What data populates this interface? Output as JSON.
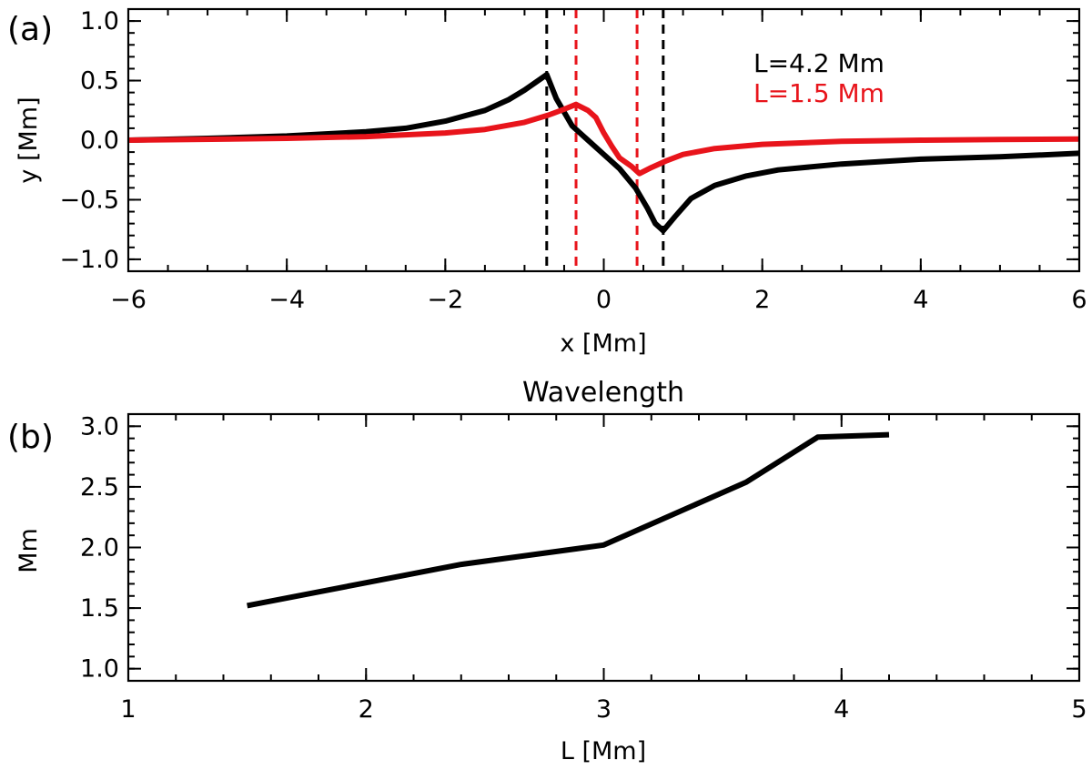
{
  "colors": {
    "black": "#000000",
    "red": "#e8141b",
    "background": "#ffffff"
  },
  "chart_data": [
    {
      "type": "line",
      "panel_label": "(a)",
      "title": "",
      "xlabel": "x [Mm]",
      "ylabel": "y [Mm]",
      "xlim": [
        -6,
        6
      ],
      "ylim": [
        -1.1,
        1.1
      ],
      "xticks": [
        -6,
        -4,
        -2,
        0,
        2,
        4,
        6
      ],
      "xtick_labels": [
        "−6",
        "−4",
        "−2",
        "0",
        "2",
        "4",
        "6"
      ],
      "yticks": [
        1.0,
        0.5,
        0.0,
        -0.5,
        -1.0
      ],
      "ytick_labels": [
        "1.0",
        "0.5",
        "0.0",
        "−0.5",
        "−1.0"
      ],
      "x_minor_step": 0.5,
      "y_minor_step": 0.1,
      "legend_position": "top-right",
      "series": [
        {
          "name": "L=4.2 Mm",
          "color": "#000000",
          "x": [
            -6.0,
            -5.0,
            -4.0,
            -3.0,
            -2.5,
            -2.0,
            -1.5,
            -1.2,
            -1.0,
            -0.85,
            -0.72,
            -0.6,
            -0.4,
            -0.2,
            0.0,
            0.2,
            0.4,
            0.55,
            0.65,
            0.75,
            0.9,
            1.1,
            1.4,
            1.8,
            2.2,
            3.0,
            4.0,
            5.0,
            6.0
          ],
          "y": [
            0.0,
            0.015,
            0.035,
            0.07,
            0.1,
            0.16,
            0.25,
            0.34,
            0.42,
            0.49,
            0.55,
            0.35,
            0.12,
            0.0,
            -0.12,
            -0.24,
            -0.4,
            -0.57,
            -0.7,
            -0.76,
            -0.64,
            -0.49,
            -0.38,
            -0.3,
            -0.25,
            -0.2,
            -0.16,
            -0.14,
            -0.11
          ]
        },
        {
          "name": "L=1.5 Mm",
          "color": "#e8141b",
          "x": [
            -6.0,
            -4.0,
            -3.0,
            -2.0,
            -1.5,
            -1.0,
            -0.7,
            -0.5,
            -0.35,
            -0.2,
            -0.1,
            0.0,
            0.1,
            0.2,
            0.35,
            0.45,
            0.6,
            0.8,
            1.0,
            1.4,
            2.0,
            3.0,
            4.0,
            5.0,
            6.0
          ],
          "y": [
            0.0,
            0.015,
            0.03,
            0.06,
            0.09,
            0.15,
            0.21,
            0.26,
            0.3,
            0.25,
            0.19,
            0.06,
            -0.05,
            -0.15,
            -0.22,
            -0.28,
            -0.23,
            -0.17,
            -0.12,
            -0.07,
            -0.035,
            -0.01,
            0.0,
            0.005,
            0.01
          ]
        }
      ],
      "vlines": [
        {
          "x": -0.72,
          "color": "#000000",
          "style": "dashed"
        },
        {
          "x": -0.35,
          "color": "#e8141b",
          "style": "dashed"
        },
        {
          "x": 0.42,
          "color": "#e8141b",
          "style": "dashed"
        },
        {
          "x": 0.75,
          "color": "#000000",
          "style": "dashed"
        }
      ]
    },
    {
      "type": "line",
      "panel_label": "(b)",
      "title": "Wavelength",
      "xlabel": "L [Mm]",
      "ylabel": "Mm",
      "xlim": [
        1,
        5
      ],
      "ylim": [
        0.9,
        3.1
      ],
      "xticks": [
        1,
        2,
        3,
        4,
        5
      ],
      "xtick_labels": [
        "1",
        "2",
        "3",
        "4",
        "5"
      ],
      "yticks": [
        1.0,
        1.5,
        2.0,
        2.5,
        3.0
      ],
      "ytick_labels": [
        "1.0",
        "1.5",
        "2.0",
        "2.5",
        "3.0"
      ],
      "x_minor_step": 0.2,
      "y_minor_step": 0.1,
      "series": [
        {
          "name": "Wavelength",
          "color": "#000000",
          "x": [
            1.5,
            2.4,
            3.0,
            3.6,
            3.9,
            4.2
          ],
          "y": [
            1.52,
            1.86,
            2.02,
            2.54,
            2.91,
            2.93
          ]
        }
      ]
    }
  ]
}
